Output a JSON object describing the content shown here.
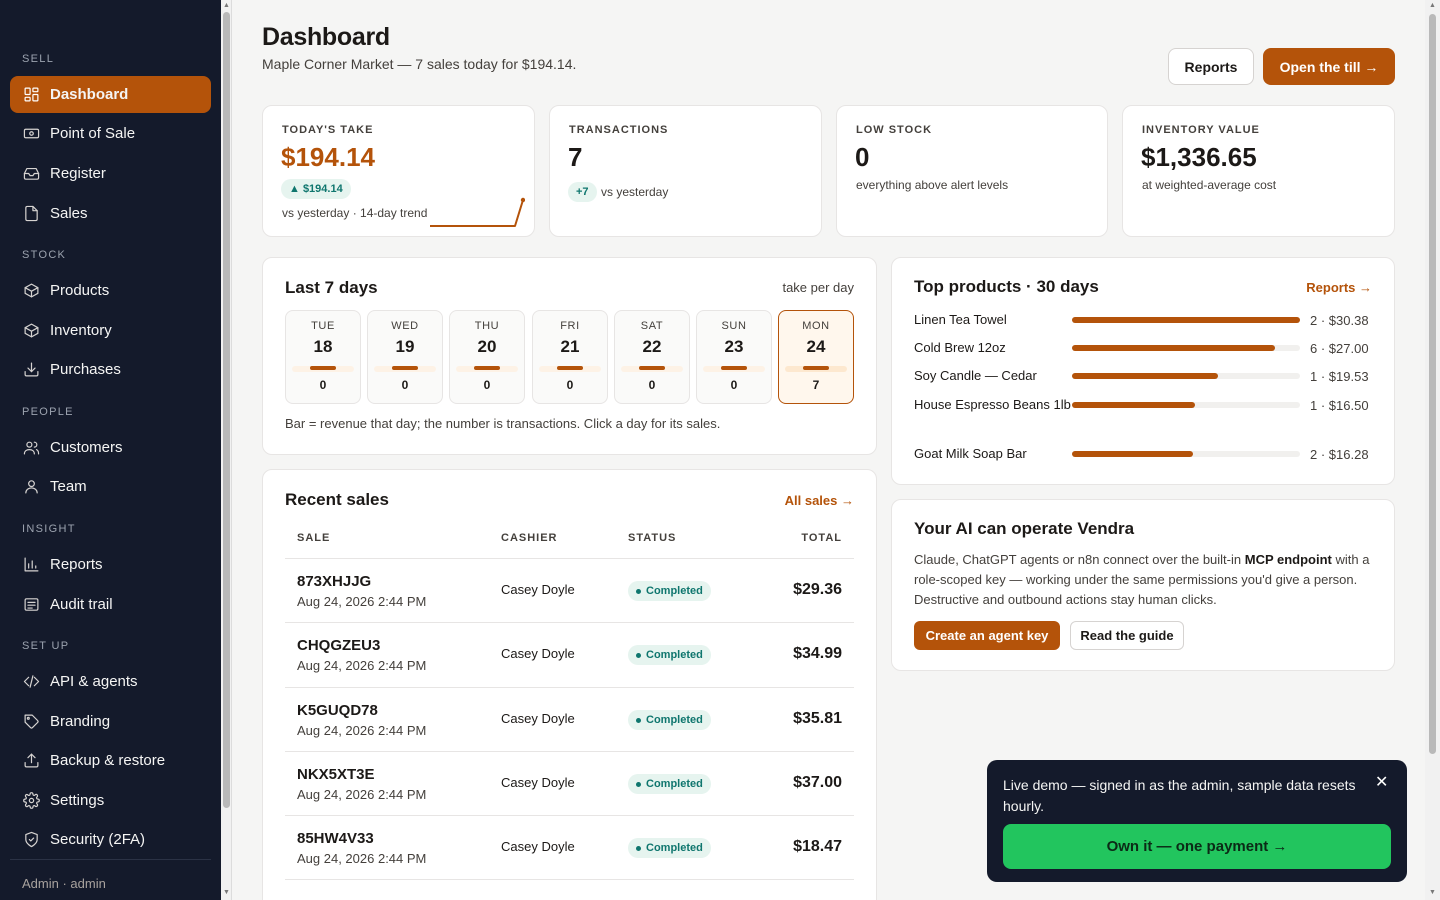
{
  "sidebar": {
    "sections": {
      "sell": "SELL",
      "stock": "STOCK",
      "people": "PEOPLE",
      "insight": "INSIGHT",
      "setup": "SET UP"
    },
    "items": {
      "dashboard": "Dashboard",
      "pos": "Point of Sale",
      "register": "Register",
      "sales": "Sales",
      "products": "Products",
      "inventory": "Inventory",
      "purchases": "Purchases",
      "customers": "Customers",
      "team": "Team",
      "reports": "Reports",
      "audit": "Audit trail",
      "api": "API & agents",
      "branding": "Branding",
      "backup": "Backup & restore",
      "settings": "Settings",
      "security": "Security (2FA)"
    },
    "footer": "Admin · admin"
  },
  "header": {
    "title": "Dashboard",
    "subtitle": "Maple Corner Market — 7 sales today for $194.14.",
    "reports_button": "Reports",
    "open_till_button": "Open the till →"
  },
  "kpis": {
    "take": {
      "label": "TODAY'S TAKE",
      "value": "$194.14",
      "delta": "▲ $194.14",
      "note": "vs yesterday · 14-day trend"
    },
    "transactions": {
      "label": "TRANSACTIONS",
      "value": "7",
      "delta": "+7",
      "note": "vs yesterday"
    },
    "low_stock": {
      "label": "LOW STOCK",
      "value": "0",
      "note": "everything above alert levels"
    },
    "inventory": {
      "label": "INVENTORY VALUE",
      "value": "$1,336.65",
      "note": "at weighted-average cost"
    }
  },
  "last7": {
    "title": "Last 7 days",
    "right_label": "take per day",
    "days": [
      {
        "name": "TUE",
        "date": "18",
        "count": "0"
      },
      {
        "name": "WED",
        "date": "19",
        "count": "0"
      },
      {
        "name": "THU",
        "date": "20",
        "count": "0"
      },
      {
        "name": "FRI",
        "date": "21",
        "count": "0"
      },
      {
        "name": "SAT",
        "date": "22",
        "count": "0"
      },
      {
        "name": "SUN",
        "date": "23",
        "count": "0"
      },
      {
        "name": "MON",
        "date": "24",
        "count": "7"
      }
    ],
    "footnote": "Bar = revenue that day; the number is transactions. Click a day for its sales."
  },
  "top_products": {
    "title": "Top products · 30 days",
    "link": "Reports →",
    "items": [
      {
        "name": "Linen Tea Towel",
        "value": "2 · $30.38",
        "share": 1.0
      },
      {
        "name": "Cold Brew 12oz",
        "value": "6 · $27.00",
        "share": 0.89
      },
      {
        "name": "Soy Candle — Cedar",
        "value": "1 · $19.53",
        "share": 0.64
      },
      {
        "name": "House Espresso Beans 1lb",
        "value": "1 · $16.50",
        "share": 0.54
      },
      {
        "name": "Goat Milk Soap Bar",
        "value": "2 · $16.28",
        "share": 0.53
      }
    ]
  },
  "recent_sales": {
    "title": "Recent sales",
    "link": "All sales →",
    "columns": {
      "sale": "SALE",
      "cashier": "CASHIER",
      "status": "STATUS",
      "total": "TOTAL"
    },
    "rows": [
      {
        "code": "873XHJJG",
        "date": "Aug 24, 2026 2:44 PM",
        "cashier": "Casey Doyle",
        "status": "Completed",
        "total": "$29.36"
      },
      {
        "code": "CHQGZEU3",
        "date": "Aug 24, 2026 2:44 PM",
        "cashier": "Casey Doyle",
        "status": "Completed",
        "total": "$34.99"
      },
      {
        "code": "K5GUQD78",
        "date": "Aug 24, 2026 2:44 PM",
        "cashier": "Casey Doyle",
        "status": "Completed",
        "total": "$35.81"
      },
      {
        "code": "NKX5XT3E",
        "date": "Aug 24, 2026 2:44 PM",
        "cashier": "Casey Doyle",
        "status": "Completed",
        "total": "$37.00"
      },
      {
        "code": "85HW4V33",
        "date": "Aug 24, 2026 2:44 PM",
        "cashier": "Casey Doyle",
        "status": "Completed",
        "total": "$18.47"
      }
    ]
  },
  "ai_card": {
    "title": "Your AI can operate Vendra",
    "text_before": "Claude, ChatGPT agents or n8n connect over the built-in ",
    "text_bold": "MCP endpoint",
    "text_after": " with a role-scoped key — working under the same permissions you'd give a person. Destructive and outbound actions stay human clicks.",
    "primary_button": "Create an agent key",
    "secondary_button": "Read the guide"
  },
  "toast": {
    "message": "Live demo — signed in as the admin, sample data resets hourly.",
    "cta": "Own it — one payment →"
  },
  "colors": {
    "accent": "#b4530a",
    "sidebar": "#141a2b",
    "success": "#22c55e"
  }
}
